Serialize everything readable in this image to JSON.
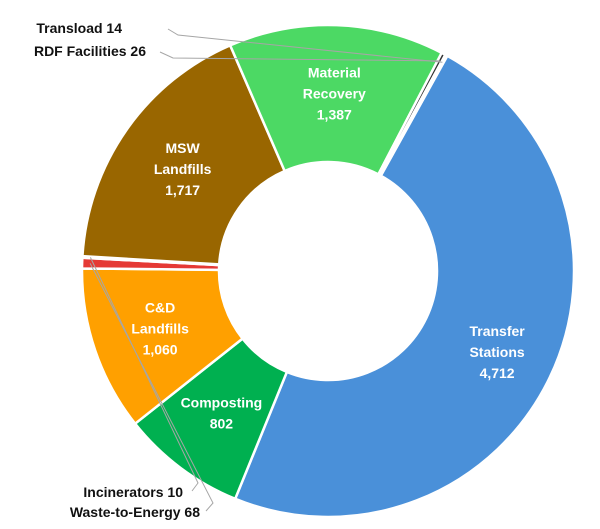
{
  "chart_data": {
    "type": "pie",
    "variant": "donut",
    "title": "",
    "legend": "none",
    "slices": [
      {
        "name": "Transfer Stations",
        "label_lines": [
          "Transfer",
          "Stations"
        ],
        "value": 4712,
        "value_label": "4,712",
        "color": "#4A90D9",
        "label_style": "inside"
      },
      {
        "name": "Composting",
        "label_lines": [
          "Composting"
        ],
        "value": 802,
        "value_label": "802",
        "color": "#00B050",
        "label_style": "inside"
      },
      {
        "name": "C&D Landfills",
        "label_lines": [
          "C&D",
          "Landfills"
        ],
        "value": 1060,
        "value_label": "1,060",
        "color": "#FFA000",
        "label_style": "inside"
      },
      {
        "name": "Waste-to-Energy",
        "label_lines": [
          "Waste-to-Energy"
        ],
        "value": 68,
        "value_label": "68",
        "color": "#E53935",
        "label_style": "callout"
      },
      {
        "name": "Incinerators",
        "label_lines": [
          "Incinerators"
        ],
        "value": 10,
        "value_label": "10",
        "color": "#F06292",
        "label_style": "callout"
      },
      {
        "name": "MSW Landfills",
        "label_lines": [
          "MSW",
          "Landfills"
        ],
        "value": 1717,
        "value_label": "1,717",
        "color": "#996600",
        "label_style": "inside"
      },
      {
        "name": "Material Recovery",
        "label_lines": [
          "Material",
          "Recovery"
        ],
        "value": 1387,
        "value_label": "1,387",
        "color": "#4CD964",
        "label_style": "inside"
      },
      {
        "name": "RDF Facilities",
        "label_lines": [
          "RDF Facilities"
        ],
        "value": 26,
        "value_label": "26",
        "color": "#333333",
        "label_style": "callout"
      },
      {
        "name": "Transload",
        "label_lines": [
          "Transload"
        ],
        "value": 14,
        "value_label": "14",
        "color": "#7F7F7F",
        "label_style": "callout"
      }
    ]
  }
}
